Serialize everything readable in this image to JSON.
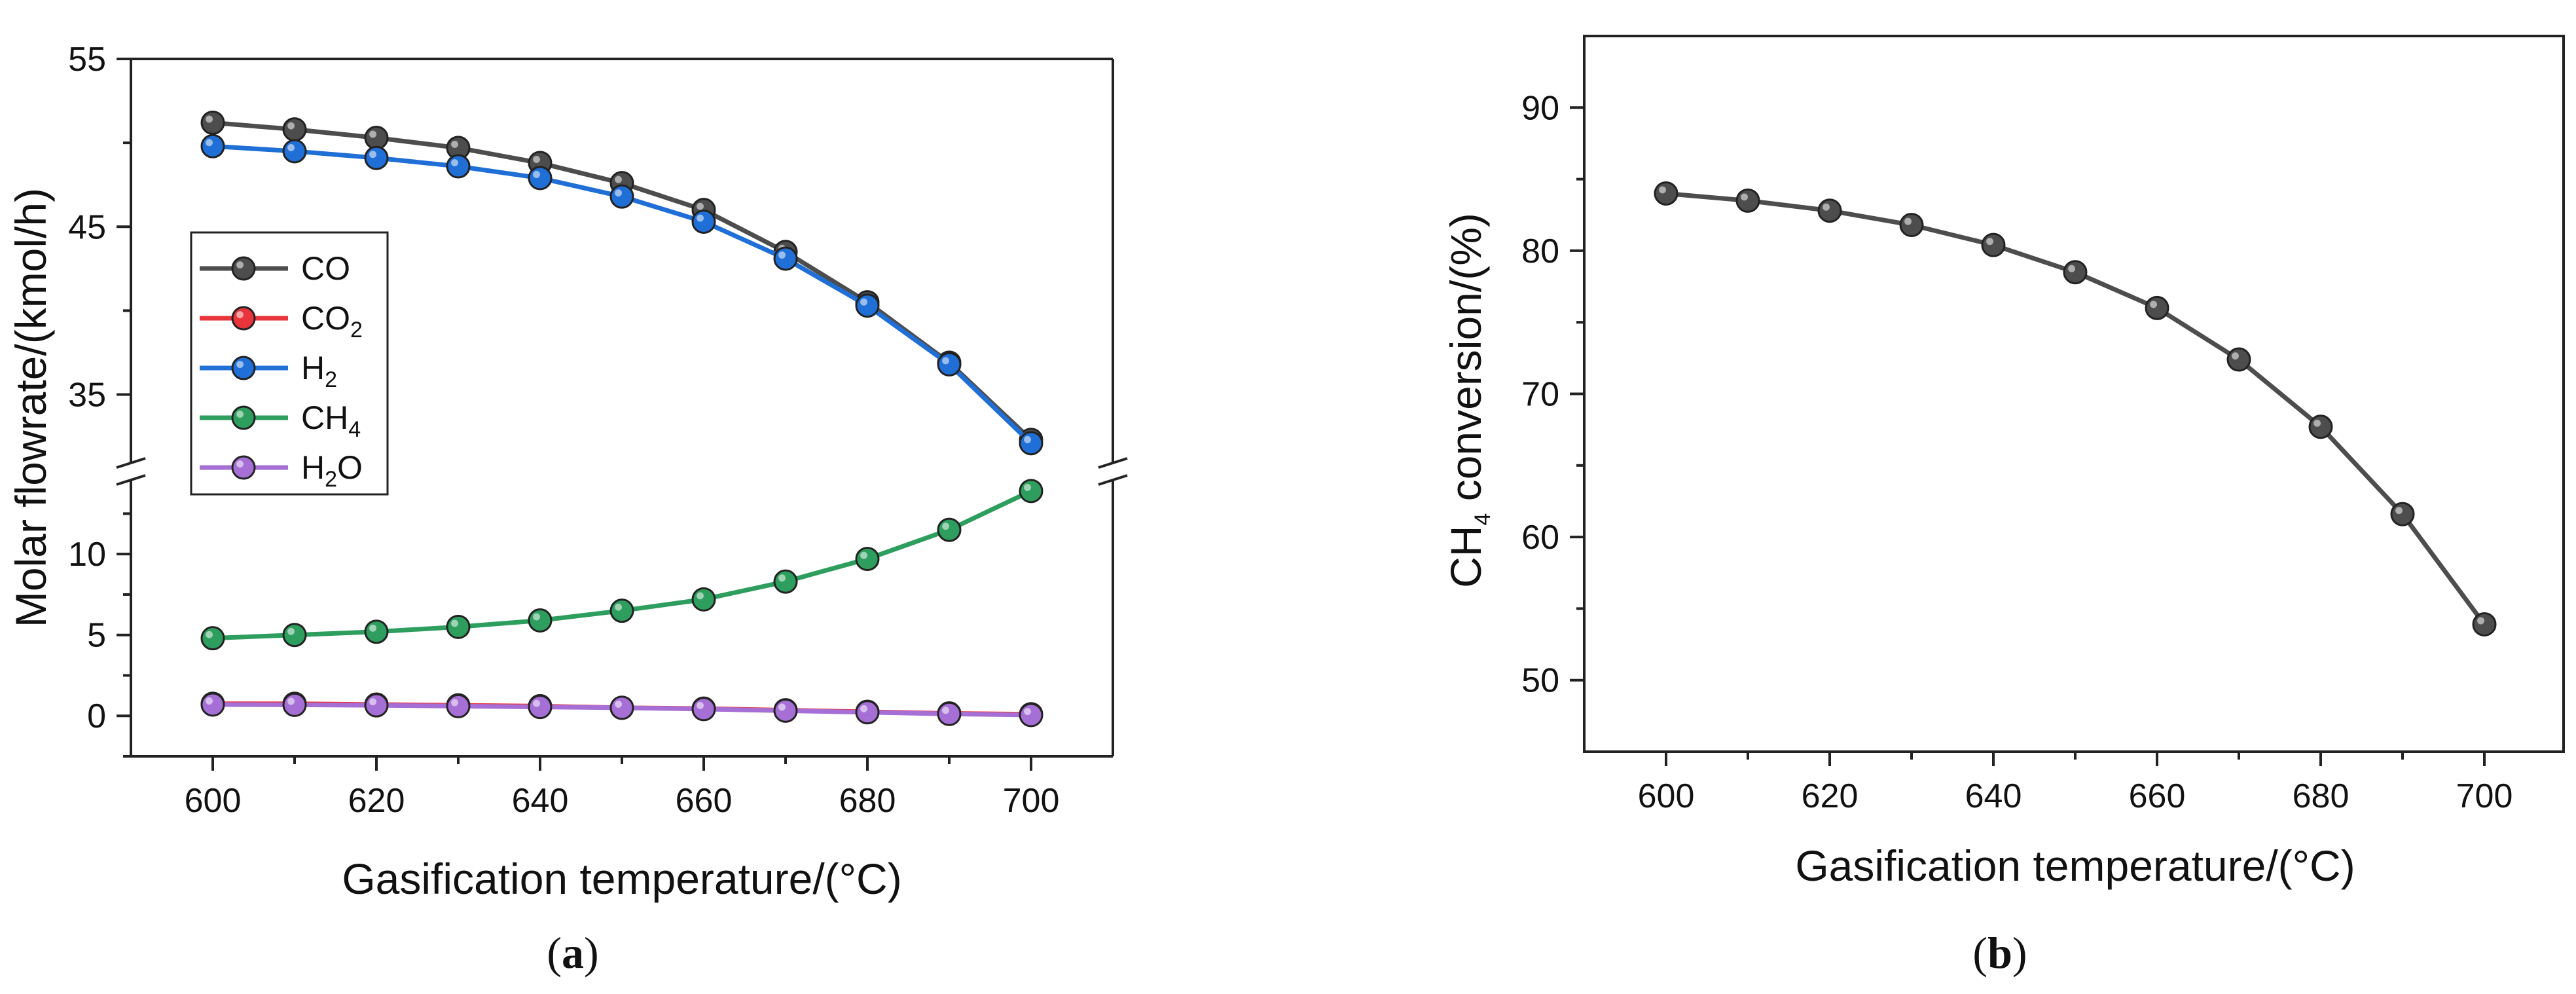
{
  "chart_data": [
    {
      "id": "a",
      "type": "line",
      "panel_label": "a",
      "xlabel": "Gasification temperature/(°C)",
      "ylabel": "Molar flowrate/(kmol/h)",
      "x": [
        600,
        610,
        620,
        630,
        640,
        650,
        660,
        670,
        680,
        690,
        700
      ],
      "xlim": [
        590,
        710
      ],
      "x_ticks": [
        "600",
        "620",
        "640",
        "660",
        "680",
        "700"
      ],
      "y_break": true,
      "ylim_lower": [
        -2.5,
        14.5
      ],
      "ylim_upper": [
        31,
        55
      ],
      "y_ticks_lower": [
        "0",
        "5",
        "10"
      ],
      "y_ticks_upper": [
        "35",
        "45",
        "55"
      ],
      "legend_position": "upper-left",
      "series": [
        {
          "name": "CO",
          "main": "CO",
          "sub": "",
          "tail": "",
          "color": "#4d4d4d",
          "segment": "upper",
          "values": [
            51.2,
            50.8,
            50.3,
            49.7,
            48.8,
            47.6,
            46.0,
            43.5,
            40.5,
            36.9,
            32.3
          ]
        },
        {
          "name": "CO2",
          "main": "CO",
          "sub": "2",
          "tail": "",
          "color": "#e8343a",
          "segment": "lower",
          "values": [
            0.75,
            0.75,
            0.7,
            0.65,
            0.6,
            0.5,
            0.45,
            0.35,
            0.25,
            0.15,
            0.1
          ]
        },
        {
          "name": "H2",
          "main": "H",
          "sub": "2",
          "tail": "",
          "color": "#1f6fd6",
          "segment": "upper",
          "values": [
            49.8,
            49.5,
            49.1,
            48.6,
            47.9,
            46.8,
            45.3,
            43.1,
            40.3,
            36.8,
            32.1
          ]
        },
        {
          "name": "CH4",
          "main": "CH",
          "sub": "4",
          "tail": "",
          "color": "#2e9e5e",
          "segment": "lower",
          "values": [
            4.8,
            5.0,
            5.2,
            5.5,
            5.9,
            6.5,
            7.2,
            8.3,
            9.7,
            11.5,
            13.9
          ]
        },
        {
          "name": "H2O",
          "main": "H",
          "sub": "2",
          "tail": "O",
          "color": "#a66fd6",
          "segment": "lower",
          "values": [
            0.7,
            0.68,
            0.65,
            0.6,
            0.55,
            0.5,
            0.42,
            0.32,
            0.22,
            0.12,
            0.05
          ]
        }
      ]
    },
    {
      "id": "b",
      "type": "line",
      "panel_label": "b",
      "xlabel": "Gasification temperature/(°C)",
      "ylabel_main": "CH",
      "ylabel_sub": "4",
      "ylabel_tail": " conversion/(%)",
      "x": [
        600,
        610,
        620,
        630,
        640,
        650,
        660,
        670,
        680,
        690,
        700
      ],
      "xlim": [
        590,
        710
      ],
      "x_ticks": [
        "600",
        "620",
        "640",
        "660",
        "680",
        "700"
      ],
      "ylim": [
        45,
        95
      ],
      "y_ticks": [
        "50",
        "60",
        "70",
        "80",
        "90"
      ],
      "series": [
        {
          "name": "CH4 conversion",
          "color": "#4d4d4d",
          "values": [
            84.0,
            83.5,
            82.8,
            81.8,
            80.4,
            78.5,
            76.0,
            72.4,
            67.7,
            61.6,
            53.9
          ]
        }
      ]
    }
  ]
}
